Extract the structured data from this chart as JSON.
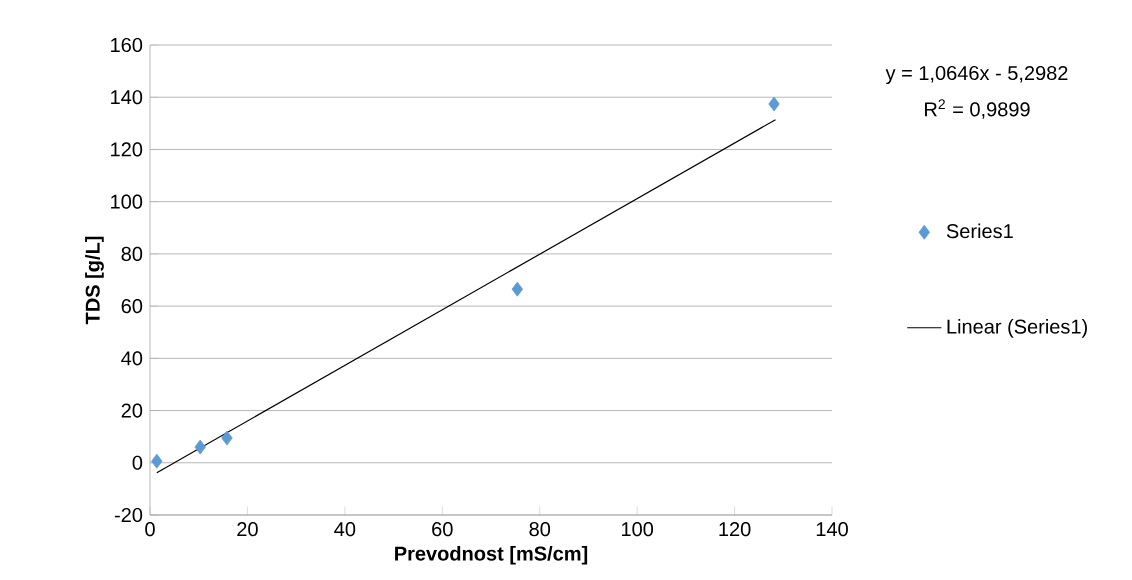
{
  "chart_data": {
    "type": "scatter",
    "xlabel": "Prevodnost [mS/cm]",
    "ylabel": "TDS [g/L]",
    "xlim": [
      0,
      140
    ],
    "xticks": [
      0,
      20,
      40,
      60,
      80,
      100,
      120,
      140
    ],
    "ylim": [
      -20,
      160
    ],
    "yticks": [
      -20,
      0,
      20,
      40,
      60,
      80,
      100,
      120,
      140,
      160
    ],
    "grid": "y",
    "legend": "right",
    "marker": "diamond",
    "annotations": [
      "y = 1,0646x - 5,2982",
      "R$^{2}$ = 0,9899"
    ],
    "series": [
      {
        "name": "Series1",
        "color": "#5b9bd5",
        "x": [
          1.4,
          10.3,
          15.8,
          75.4,
          128.1
        ],
        "values": [
          0.6,
          6.0,
          9.5,
          66.5,
          137.4
        ]
      },
      {
        "name": "Linear (Series1)",
        "type": "line",
        "color": "#000000",
        "marker": "none",
        "line_style": "solid",
        "x": [
          1.4,
          128.4
        ],
        "values": [
          -3.8,
          131.4
        ]
      }
    ]
  }
}
